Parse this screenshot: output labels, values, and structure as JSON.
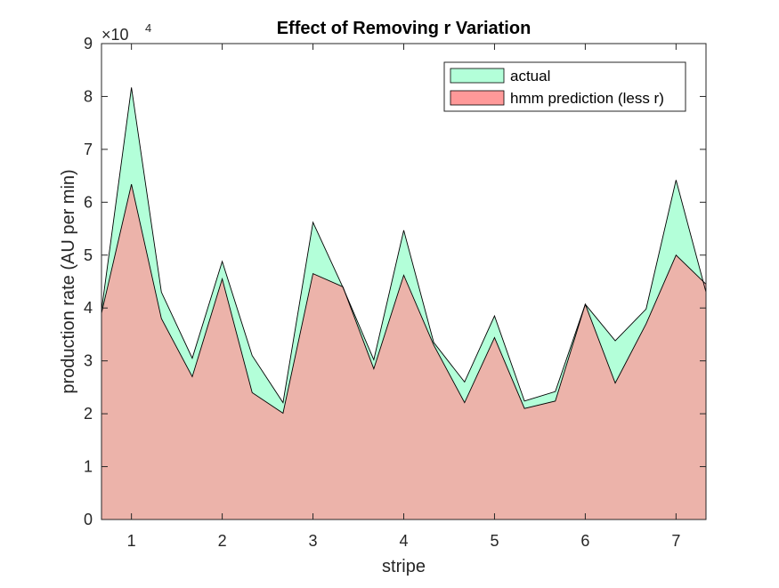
{
  "chart_data": {
    "type": "area",
    "title": "Effect of Removing r Variation",
    "xlabel": "stripe",
    "ylabel": "production rate (AU per min)",
    "y_exponent_label": "×10",
    "y_exponent": "4",
    "xlim": [
      0.67,
      7.33
    ],
    "ylim": [
      0,
      90000
    ],
    "xticks": [
      1,
      2,
      3,
      4,
      5,
      6,
      7
    ],
    "xtick_labels": [
      "1",
      "2",
      "3",
      "4",
      "5",
      "6",
      "7"
    ],
    "yticks": [
      0,
      10000,
      20000,
      30000,
      40000,
      50000,
      60000,
      70000,
      80000,
      90000
    ],
    "ytick_labels": [
      "0",
      "1",
      "2",
      "3",
      "4",
      "5",
      "6",
      "7",
      "8",
      "9"
    ],
    "grid": false,
    "legend_position": "top-right",
    "x": [
      0.67,
      1.0,
      1.33,
      1.67,
      2.0,
      2.33,
      2.67,
      3.0,
      3.33,
      3.67,
      4.0,
      4.33,
      4.67,
      5.0,
      5.33,
      5.67,
      6.0,
      6.33,
      6.67,
      7.0,
      7.33
    ],
    "series": [
      {
        "name": "actual",
        "color": "#b3ffd9",
        "values": [
          39500,
          81700,
          43000,
          30500,
          48800,
          31000,
          22100,
          56200,
          43900,
          30200,
          54700,
          33500,
          26000,
          38500,
          22400,
          24200,
          40700,
          33800,
          39800,
          64200,
          43000
        ]
      },
      {
        "name": "hmm prediction (less r)",
        "color": "#ff9999",
        "values": [
          39000,
          63400,
          38000,
          27000,
          45500,
          24000,
          20100,
          46500,
          44000,
          28500,
          46200,
          33000,
          22100,
          34400,
          21000,
          22400,
          40700,
          25800,
          37000,
          50000,
          44500
        ]
      }
    ],
    "overlap_color": "#d9a68c"
  }
}
